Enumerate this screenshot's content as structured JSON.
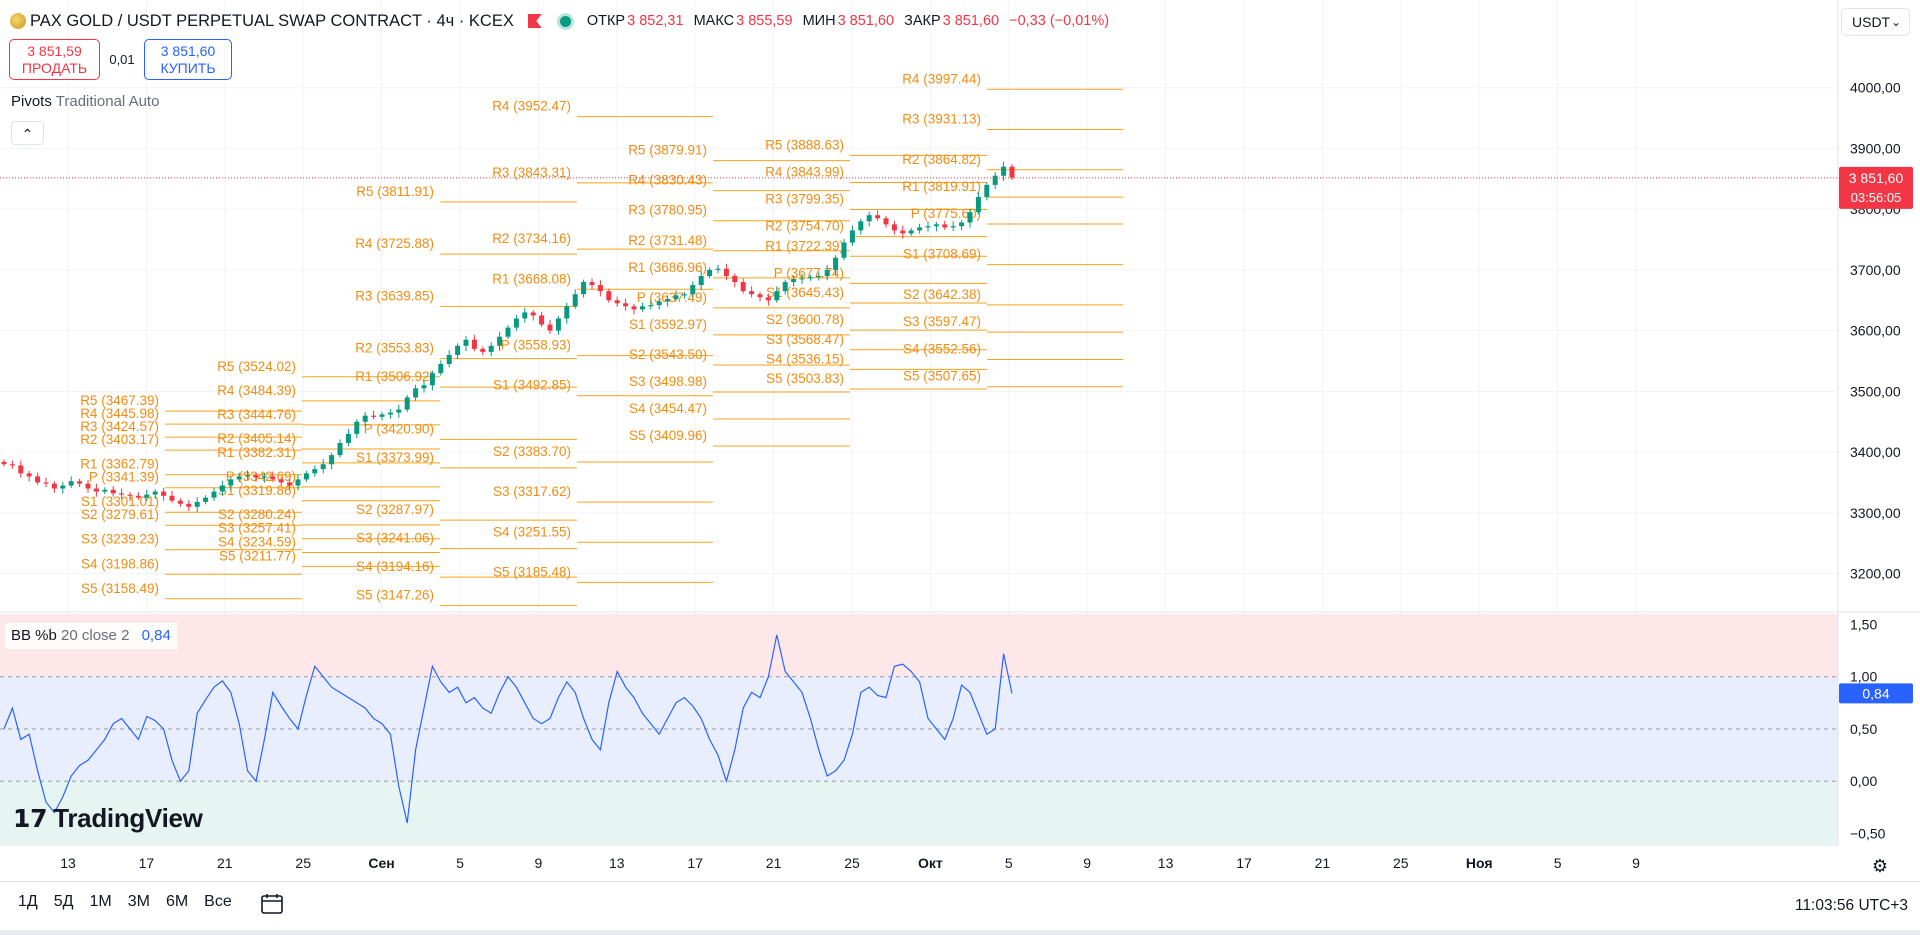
{
  "header": {
    "title": "PAX GOLD / USDT PERPETUAL SWAP CONTRACT · 4ч · KCEX",
    "ohlc": [
      {
        "label": "ОТКР",
        "value": "3 852,31"
      },
      {
        "label": "МАКС",
        "value": "3 855,59"
      },
      {
        "label": "МИН",
        "value": "3 851,60"
      },
      {
        "label": "ЗАКР",
        "value": "3 851,60"
      }
    ],
    "change": "−0,33 (−0,01%)"
  },
  "trade": {
    "sell_price": "3 851,59",
    "sell_label": "ПРОДАТЬ",
    "spread": "0,01",
    "buy_price": "3 851,60",
    "buy_label": "КУПИТЬ"
  },
  "pivots_indicator": {
    "name": "Pivots",
    "settings": "Traditional Auto"
  },
  "currency": "USDT",
  "oscillator": {
    "name": "BB %b",
    "settings": "20 close 2",
    "value": "0,84"
  },
  "logo_text": "TradingView",
  "price_label": {
    "price": "3 851,60",
    "countdown": "03:56:05"
  },
  "osc_label": "0,84",
  "range_buttons": [
    "1Д",
    "5Д",
    "1M",
    "3M",
    "6M",
    "Все"
  ],
  "clock": "11:03:56 UTC+3",
  "colors": {
    "up": "#089981",
    "down": "#f23645",
    "pivot": "#f7a21b",
    "pivot_text": "#f28c13",
    "osc_line": "#2962ff"
  },
  "chart_data": {
    "type": "candlestick",
    "x_ticks": [
      "13",
      "17",
      "21",
      "25",
      "Сен",
      "5",
      "9",
      "13",
      "17",
      "21",
      "25",
      "Окт",
      "5",
      "9",
      "13",
      "17",
      "21",
      "25",
      "Ноя",
      "5",
      "9"
    ],
    "price_axis_ticks": [
      "4000,00",
      "3900,00",
      "3800,00",
      "3700,00",
      "3600,00",
      "3500,00",
      "3400,00",
      "3300,00",
      "3200,00"
    ],
    "price_range": [
      3140,
      4095
    ],
    "osc_axis_ticks": [
      "1,50",
      "1,00",
      "0,50",
      "0,00",
      "−0,50"
    ],
    "osc_range": [
      -0.62,
      1.6
    ],
    "last_price": 3851.6,
    "closes": [
      3380,
      3378,
      3365,
      3360,
      3350,
      3348,
      3340,
      3345,
      3352,
      3348,
      3340,
      3335,
      3338,
      3332,
      3330,
      3328,
      3325,
      3330,
      3335,
      3328,
      3320,
      3315,
      3310,
      3318,
      3325,
      3335,
      3345,
      3355,
      3360,
      3362,
      3358,
      3360,
      3355,
      3350,
      3345,
      3355,
      3365,
      3372,
      3380,
      3395,
      3415,
      3430,
      3450,
      3460,
      3458,
      3462,
      3465,
      3470,
      3490,
      3505,
      3510,
      3530,
      3545,
      3560,
      3575,
      3585,
      3570,
      3565,
      3575,
      3590,
      3605,
      3620,
      3630,
      3625,
      3610,
      3600,
      3620,
      3640,
      3660,
      3680,
      3675,
      3665,
      3650,
      3645,
      3640,
      3635,
      3640,
      3642,
      3648,
      3652,
      3658,
      3660,
      3675,
      3690,
      3700,
      3702,
      3690,
      3680,
      3665,
      3660,
      3655,
      3650,
      3665,
      3680,
      3685,
      3686,
      3688,
      3690,
      3700,
      3720,
      3745,
      3765,
      3780,
      3790,
      3785,
      3775,
      3765,
      3760,
      3765,
      3770,
      3772,
      3775,
      3770,
      3772,
      3778,
      3795,
      3820,
      3840,
      3855,
      3870,
      3852
    ],
    "osc_values": [
      0.5,
      0.7,
      0.4,
      0.45,
      0.1,
      -0.2,
      -0.3,
      -0.15,
      0.05,
      0.15,
      0.2,
      0.3,
      0.4,
      0.55,
      0.6,
      0.5,
      0.4,
      0.62,
      0.58,
      0.5,
      0.2,
      0.0,
      0.1,
      0.65,
      0.78,
      0.9,
      0.96,
      0.85,
      0.55,
      0.1,
      0.0,
      0.4,
      0.85,
      0.72,
      0.6,
      0.5,
      0.82,
      1.1,
      1.0,
      0.9,
      0.85,
      0.8,
      0.75,
      0.7,
      0.6,
      0.55,
      0.45,
      -0.05,
      -0.4,
      0.3,
      0.7,
      1.1,
      0.95,
      0.85,
      0.9,
      0.75,
      0.8,
      0.7,
      0.65,
      0.85,
      1.0,
      0.9,
      0.75,
      0.6,
      0.55,
      0.6,
      0.8,
      0.95,
      0.85,
      0.6,
      0.4,
      0.3,
      0.75,
      1.05,
      0.9,
      0.8,
      0.65,
      0.55,
      0.45,
      0.6,
      0.75,
      0.8,
      0.72,
      0.6,
      0.4,
      0.25,
      0.0,
      0.3,
      0.7,
      0.85,
      0.8,
      1.0,
      1.4,
      1.05,
      0.95,
      0.85,
      0.6,
      0.3,
      0.05,
      0.1,
      0.2,
      0.45,
      0.85,
      0.9,
      0.82,
      0.8,
      1.1,
      1.12,
      1.05,
      0.95,
      0.6,
      0.5,
      0.4,
      0.6,
      0.92,
      0.85,
      0.65,
      0.45,
      0.5,
      1.22,
      0.84
    ],
    "pivot_sets": [
      {
        "levels": [
          {
            "label": "R5 (3467.39)",
            "v": 3467.39
          },
          {
            "label": "R4 (3445.98)",
            "v": 3445.98
          },
          {
            "label": "R3 (3424.57)",
            "v": 3424.57
          },
          {
            "label": "R2 (3403.17)",
            "v": 3403.17
          },
          {
            "label": "R1 (3362.79)",
            "v": 3362.79
          },
          {
            "label": "P (3341.39)",
            "v": 3341.39
          },
          {
            "label": "S1 (3301.01)",
            "v": 3301.01
          },
          {
            "label": "S2 (3279.61)",
            "v": 3279.61
          },
          {
            "label": "S3 (3239.23)",
            "v": 3239.23
          },
          {
            "label": "S4 (3198.86)",
            "v": 3198.86
          },
          {
            "label": "S5 (3158.49)",
            "v": 3158.49
          }
        ]
      },
      {
        "levels": [
          {
            "label": "R5 (3524.02)",
            "v": 3524.02
          },
          {
            "label": "R4 (3484.39)",
            "v": 3484.39
          },
          {
            "label": "R3 (3444.76)",
            "v": 3444.76
          },
          {
            "label": "R2 (3405.14)",
            "v": 3405.14
          },
          {
            "label": "R1 (3382.31)",
            "v": 3382.31
          },
          {
            "label": "P (3342.69)",
            "v": 3342.69
          },
          {
            "label": "S1 (3319.86)",
            "v": 3319.86
          },
          {
            "label": "S2 (3280.24)",
            "v": 3280.24
          },
          {
            "label": "S3 (3257.41)",
            "v": 3257.41
          },
          {
            "label": "S4 (3234.59)",
            "v": 3234.59
          },
          {
            "label": "S5 (3211.77)",
            "v": 3211.77
          }
        ]
      },
      {
        "levels": [
          {
            "label": "R5 (3811.91)",
            "v": 3811.91
          },
          {
            "label": "R4 (3725.88)",
            "v": 3725.88
          },
          {
            "label": "R3 (3639.85)",
            "v": 3639.85
          },
          {
            "label": "R2 (3553.83)",
            "v": 3553.83
          },
          {
            "label": "R1 (3506.92)",
            "v": 3506.92
          },
          {
            "label": "P (3420.90)",
            "v": 3420.9
          },
          {
            "label": "S1 (3373.99)",
            "v": 3373.99
          },
          {
            "label": "S2 (3287.97)",
            "v": 3287.97
          },
          {
            "label": "S3 (3241.06)",
            "v": 3241.06
          },
          {
            "label": "S4 (3194.16)",
            "v": 3194.16
          },
          {
            "label": "S5 (3147.26)",
            "v": 3147.26
          }
        ]
      },
      {
        "levels": [
          {
            "label": "R4 (3952.47)",
            "v": 3952.47
          },
          {
            "label": "R3 (3843.31)",
            "v": 3843.31
          },
          {
            "label": "R2 (3734.16)",
            "v": 3734.16
          },
          {
            "label": "R1 (3668.08)",
            "v": 3668.08
          },
          {
            "label": "P (3558.93)",
            "v": 3558.93
          },
          {
            "label": "S1 (3492.85)",
            "v": 3492.85
          },
          {
            "label": "S2 (3383.70)",
            "v": 3383.7
          },
          {
            "label": "S3 (3317.62)",
            "v": 3317.62
          },
          {
            "label": "S4 (3251.55)",
            "v": 3251.55
          },
          {
            "label": "S5 (3185.48)",
            "v": 3185.48
          }
        ]
      },
      {
        "levels": [
          {
            "label": "R5 (3879.91)",
            "v": 3879.91
          },
          {
            "label": "R4 (3830.43)",
            "v": 3830.43
          },
          {
            "label": "R3 (3780.95)",
            "v": 3780.95
          },
          {
            "label": "R2 (3731.48)",
            "v": 3731.48
          },
          {
            "label": "R1 (3686.96)",
            "v": 3686.96
          },
          {
            "label": "P (3637.49)",
            "v": 3637.49
          },
          {
            "label": "S1 (3592.97)",
            "v": 3592.97
          },
          {
            "label": "S2 (3543.50)",
            "v": 3543.5
          },
          {
            "label": "S3 (3498.98)",
            "v": 3498.98
          },
          {
            "label": "S4 (3454.47)",
            "v": 3454.47
          },
          {
            "label": "S5 (3409.96)",
            "v": 3409.96
          }
        ]
      },
      {
        "levels": [
          {
            "label": "R5 (3888.63)",
            "v": 3888.63
          },
          {
            "label": "R4 (3843.99)",
            "v": 3843.99
          },
          {
            "label": "R3 (3799.35)",
            "v": 3799.35
          },
          {
            "label": "R2 (3754.70)",
            "v": 3754.7
          },
          {
            "label": "R1 (3722.39)",
            "v": 3722.39
          },
          {
            "label": "P (3677.74)",
            "v": 3677.74
          },
          {
            "label": "S1 (3645.43)",
            "v": 3645.43
          },
          {
            "label": "S2 (3600.78)",
            "v": 3600.78
          },
          {
            "label": "S3 (3568.47)",
            "v": 3568.47
          },
          {
            "label": "S4 (3536.15)",
            "v": 3536.15
          },
          {
            "label": "S5 (3503.83)",
            "v": 3503.83
          }
        ]
      },
      {
        "levels": [
          {
            "label": "R4 (3997.44)",
            "v": 3997.44
          },
          {
            "label": "R3 (3931.13)",
            "v": 3931.13
          },
          {
            "label": "R2 (3864.82)",
            "v": 3864.82
          },
          {
            "label": "R1 (3819.91)",
            "v": 3819.91
          },
          {
            "label": "P (3775.60)",
            "v": 3775.6
          },
          {
            "label": "S1 (3708.69)",
            "v": 3708.69
          },
          {
            "label": "S2 (3642.38)",
            "v": 3642.38
          },
          {
            "label": "S3 (3597.47)",
            "v": 3597.47
          },
          {
            "label": "S4 (3552.56)",
            "v": 3552.56
          },
          {
            "label": "S5 (3507.65)",
            "v": 3507.65
          }
        ]
      }
    ]
  }
}
